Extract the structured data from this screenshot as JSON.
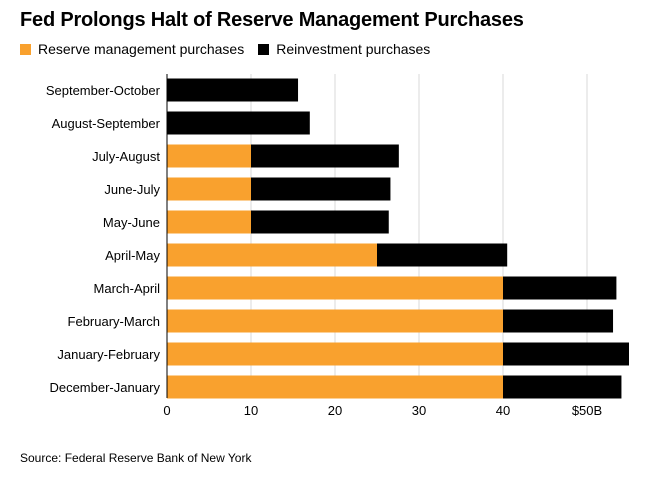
{
  "colors": {
    "reserve": "#f9a12e",
    "reinvestment": "#000000",
    "grid": "#d9d9d9",
    "axis": "#000000"
  },
  "chart_data": {
    "type": "bar",
    "orientation": "horizontal",
    "stacked": true,
    "title": "Fed Prolongs Halt of Reserve Management Purchases",
    "categories": [
      "September-October",
      "August-September",
      "July-August",
      "June-July",
      "May-June",
      "April-May",
      "March-April",
      "February-March",
      "January-February",
      "December-January"
    ],
    "series": [
      {
        "name": "Reserve management purchases",
        "color": "#f9a12e",
        "values": [
          0,
          0,
          10,
          10,
          10,
          25,
          40,
          40,
          40,
          40
        ]
      },
      {
        "name": "Reinvestment purchases",
        "color": "#000000",
        "values": [
          15.6,
          17.0,
          17.6,
          16.6,
          16.4,
          15.5,
          13.5,
          13.1,
          15.0,
          14.1
        ]
      }
    ],
    "x_ticks": [
      "0",
      "10",
      "20",
      "30",
      "40",
      "$50B"
    ],
    "x_tick_values": [
      0,
      10,
      20,
      30,
      40,
      50
    ],
    "xlim": [
      0,
      55
    ],
    "grid": true,
    "legend_position": "top-left"
  },
  "source": "Source: Federal Reserve Bank of New York"
}
